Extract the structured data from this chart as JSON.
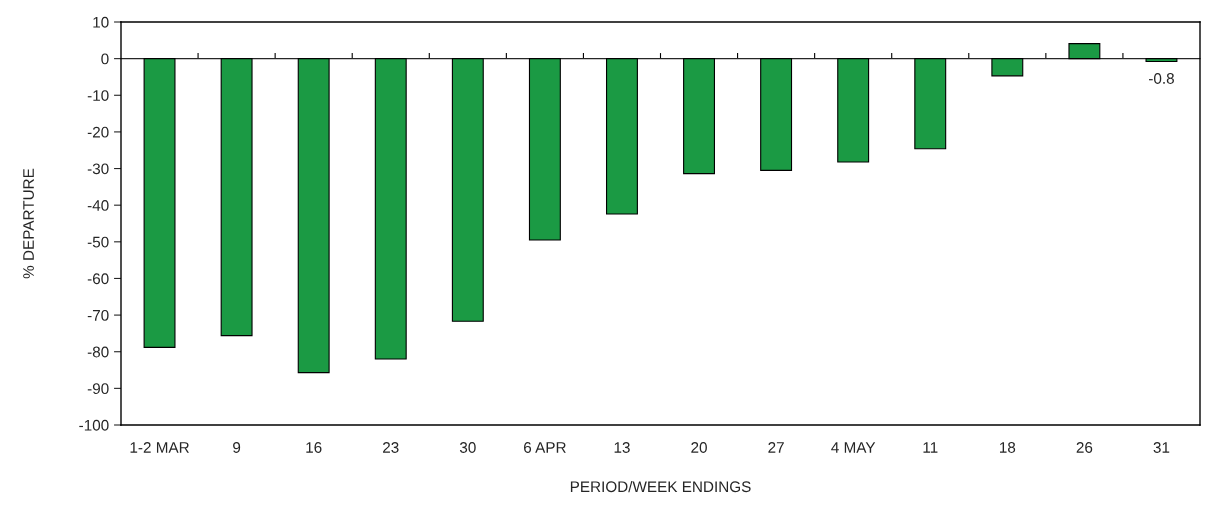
{
  "chart_data": {
    "type": "bar",
    "xlabel": "PERIOD/WEEK ENDINGS",
    "ylabel": "% DEPARTURE",
    "categories": [
      "1-2 MAR",
      "9",
      "16",
      "23",
      "30",
      "6 APR",
      "13",
      "20",
      "27",
      "4 MAY",
      "11",
      "18",
      "26",
      "31"
    ],
    "values": [
      -78.8,
      -75.6,
      -85.7,
      -82.0,
      -71.7,
      -49.5,
      -42.4,
      -31.4,
      -30.5,
      -28.2,
      -24.6,
      -4.7,
      4.1,
      -0.8
    ],
    "value_labels": [
      null,
      null,
      null,
      null,
      null,
      null,
      null,
      null,
      null,
      null,
      null,
      null,
      null,
      "-0.8"
    ],
    "color": "#1b9a44",
    "ylim": [
      -100,
      10
    ],
    "yticks": [
      10,
      0,
      -10,
      -20,
      -30,
      -40,
      -50,
      -60,
      -70,
      -80,
      -90,
      -100
    ],
    "legend": false
  }
}
